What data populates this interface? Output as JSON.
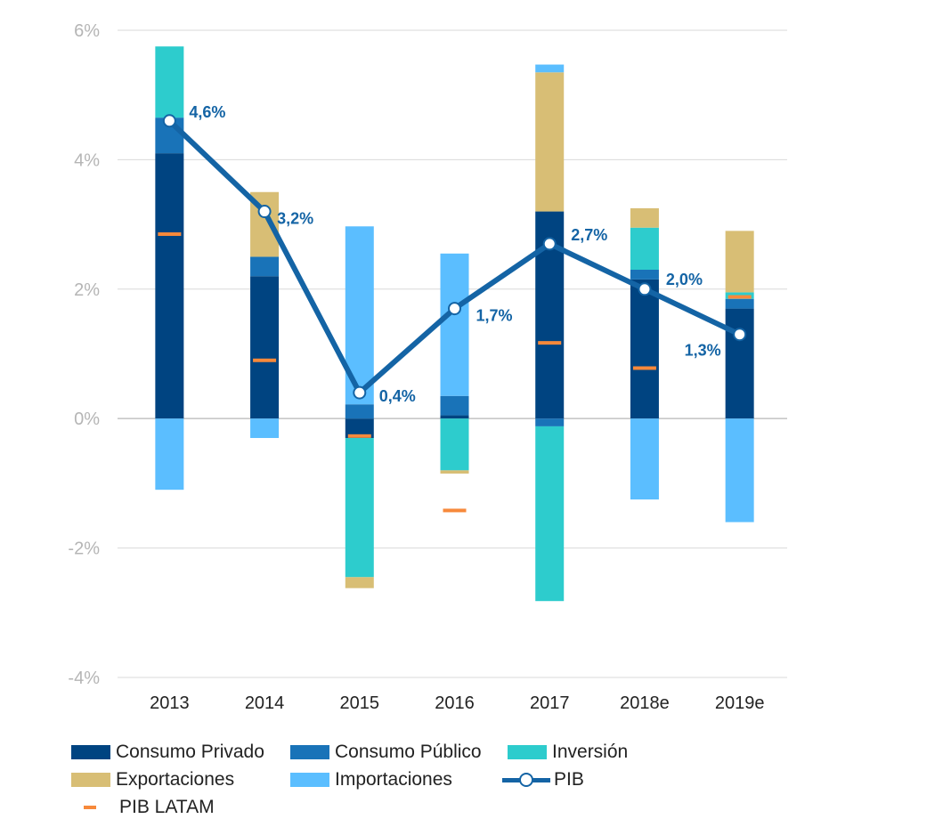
{
  "chart_data": {
    "type": "bar",
    "stacked": true,
    "categories": [
      "2013",
      "2014",
      "2015",
      "2016",
      "2017",
      "2018e",
      "2019e"
    ],
    "ylim": [
      -4,
      6
    ],
    "yticks": [
      6,
      4,
      2,
      0,
      -2,
      -4
    ],
    "ytick_labels": [
      "6%",
      "4%",
      "2%",
      "0%",
      "-2%",
      "-4%"
    ],
    "grid": true,
    "legend_position": "bottom",
    "series": [
      {
        "name": "Consumo Privado",
        "type": "bar",
        "color": "#004481",
        "values": [
          4.1,
          2.2,
          -0.3,
          0.05,
          3.2,
          2.15,
          1.7
        ]
      },
      {
        "name": "Consumo Público",
        "type": "bar",
        "color": "#1973b8",
        "values": [
          0.55,
          0.3,
          0.22,
          0.3,
          -0.12,
          0.15,
          0.15
        ]
      },
      {
        "name": "Inversión",
        "type": "bar",
        "color": "#2dcccd",
        "values": [
          1.1,
          0.0,
          -2.15,
          -0.8,
          -2.7,
          0.65,
          0.1
        ]
      },
      {
        "name": "Exportaciones",
        "type": "bar",
        "color": "#d8be75",
        "values": [
          0.0,
          1.0,
          -0.17,
          -0.05,
          2.15,
          0.3,
          0.95
        ]
      },
      {
        "name": "Importaciones",
        "type": "bar",
        "color": "#5bbeff",
        "values": [
          -1.1,
          -0.3,
          2.75,
          2.2,
          0.12,
          -1.25,
          -1.6
        ]
      },
      {
        "name": "PIB",
        "type": "line",
        "color": "#1464a5",
        "values": [
          4.6,
          3.2,
          0.4,
          1.7,
          2.7,
          2.0,
          1.3
        ]
      },
      {
        "name": "PIB LATAM",
        "type": "marker",
        "color": "#f7893b",
        "values": [
          2.85,
          0.9,
          -0.27,
          -1.42,
          1.17,
          0.78,
          1.88
        ]
      }
    ],
    "data_labels": [
      "4,6%",
      "3,2%",
      "0,4%",
      "1,7%",
      "2,7%",
      "2,0%",
      "1,3%"
    ]
  }
}
